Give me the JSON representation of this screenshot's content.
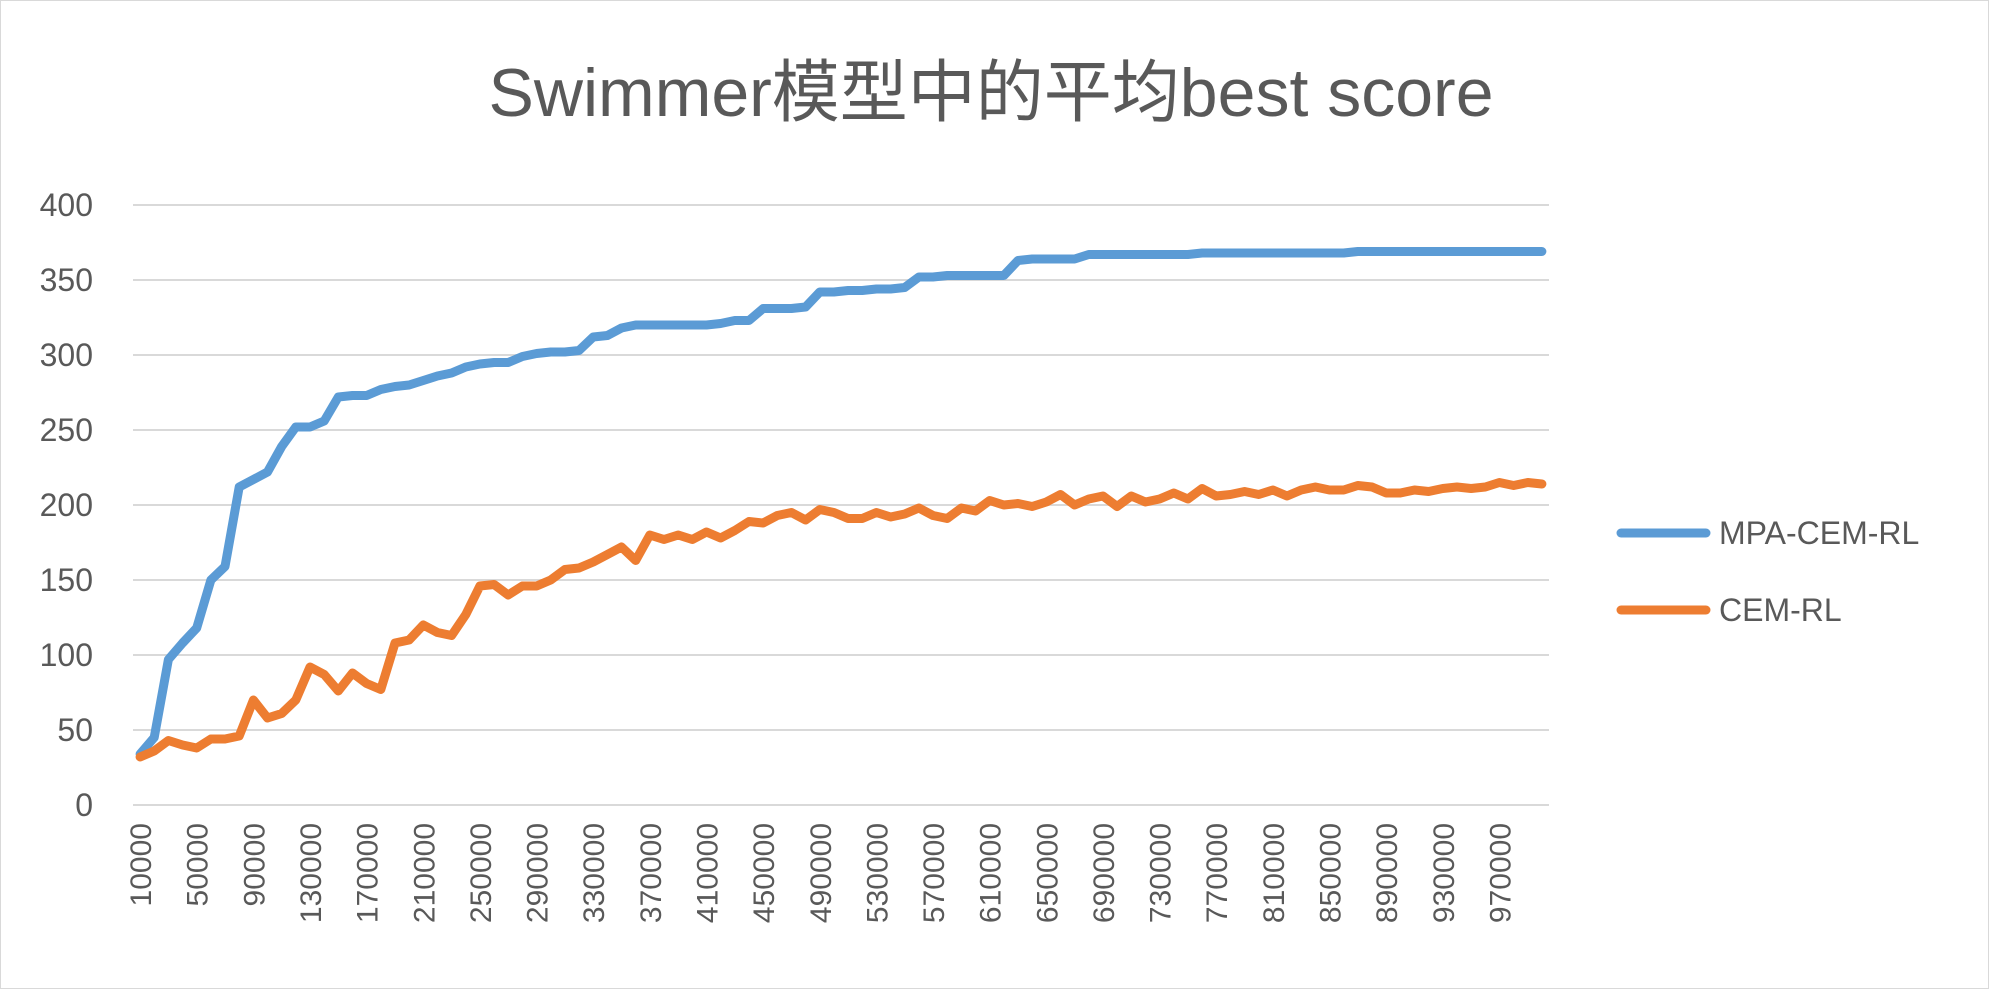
{
  "chart_data": {
    "type": "line",
    "title": "Swimmer模型中的平均best score",
    "xlabel": "",
    "ylabel": "",
    "ylim": [
      0,
      400
    ],
    "yticks": [
      "0",
      "50",
      "100",
      "150",
      "200",
      "250",
      "300",
      "350",
      "400"
    ],
    "xtick_labels": [
      "10000",
      "50000",
      "90000",
      "130000",
      "170000",
      "210000",
      "250000",
      "290000",
      "330000",
      "370000",
      "410000",
      "450000",
      "490000",
      "530000",
      "570000",
      "610000",
      "650000",
      "690000",
      "730000",
      "770000",
      "810000",
      "850000",
      "890000",
      "930000",
      "970000"
    ],
    "grid": true,
    "legend_position": "right",
    "x": [
      10000,
      20000,
      30000,
      40000,
      50000,
      60000,
      70000,
      80000,
      90000,
      100000,
      110000,
      120000,
      130000,
      140000,
      150000,
      160000,
      170000,
      180000,
      190000,
      200000,
      210000,
      220000,
      230000,
      240000,
      250000,
      260000,
      270000,
      280000,
      290000,
      300000,
      310000,
      320000,
      330000,
      340000,
      350000,
      360000,
      370000,
      380000,
      390000,
      400000,
      410000,
      420000,
      430000,
      440000,
      450000,
      460000,
      470000,
      480000,
      490000,
      500000,
      510000,
      520000,
      530000,
      540000,
      550000,
      560000,
      570000,
      580000,
      590000,
      600000,
      610000,
      620000,
      630000,
      640000,
      650000,
      660000,
      670000,
      680000,
      690000,
      700000,
      710000,
      720000,
      730000,
      740000,
      750000,
      760000,
      770000,
      780000,
      790000,
      800000,
      810000,
      820000,
      830000,
      840000,
      850000,
      860000,
      870000,
      880000,
      890000,
      900000,
      910000,
      920000,
      930000,
      940000,
      950000,
      960000,
      970000,
      980000,
      990000,
      1000000
    ],
    "series": [
      {
        "name": "MPA-CEM-RL",
        "color": "#5b9bd5",
        "values": [
          34,
          45,
          97,
          108,
          118,
          150,
          159,
          212,
          217,
          222,
          239,
          252,
          252,
          256,
          272,
          273,
          273,
          277,
          279,
          280,
          283,
          286,
          288,
          292,
          294,
          295,
          295,
          299,
          301,
          302,
          302,
          303,
          312,
          313,
          318,
          320,
          320,
          320,
          320,
          320,
          320,
          321,
          323,
          323,
          331,
          331,
          331,
          332,
          342,
          342,
          343,
          343,
          344,
          344,
          345,
          352,
          352,
          353,
          353,
          353,
          353,
          353,
          363,
          364,
          364,
          364,
          364,
          367,
          367,
          367,
          367,
          367,
          367,
          367,
          367,
          368,
          368,
          368,
          368,
          368,
          368,
          368,
          368,
          368,
          368,
          368,
          369,
          369,
          369,
          369,
          369,
          369,
          369,
          369,
          369,
          369,
          369,
          369,
          369,
          369
        ]
      },
      {
        "name": "CEM-RL",
        "color": "#ed7d31",
        "values": [
          32,
          36,
          43,
          40,
          38,
          44,
          44,
          46,
          70,
          58,
          61,
          70,
          92,
          87,
          76,
          88,
          81,
          77,
          108,
          110,
          120,
          115,
          113,
          127,
          146,
          147,
          140,
          146,
          146,
          150,
          157,
          158,
          162,
          167,
          172,
          163,
          180,
          177,
          180,
          177,
          182,
          178,
          183,
          189,
          188,
          193,
          195,
          190,
          197,
          195,
          191,
          191,
          195,
          192,
          194,
          198,
          193,
          191,
          198,
          196,
          203,
          200,
          201,
          199,
          202,
          207,
          200,
          204,
          206,
          199,
          206,
          202,
          204,
          208,
          204,
          211,
          206,
          207,
          209,
          207,
          210,
          206,
          210,
          212,
          210,
          210,
          213,
          212,
          208,
          208,
          210,
          209,
          211,
          212,
          211,
          212,
          215,
          213,
          215,
          214
        ]
      }
    ]
  }
}
